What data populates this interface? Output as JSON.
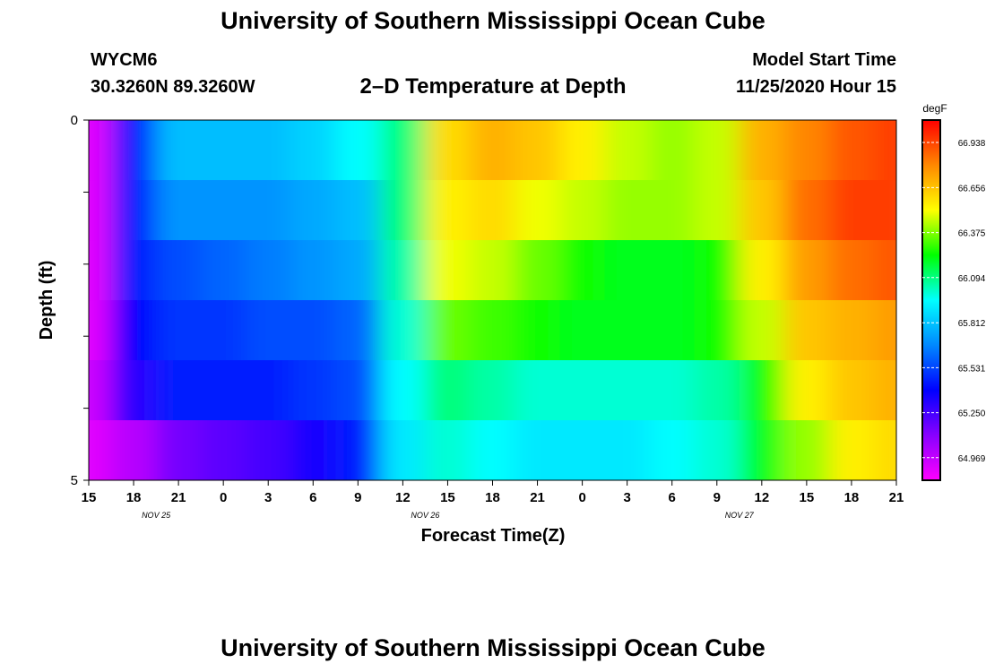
{
  "header": {
    "title": "University of Southern Mississippi Ocean Cube",
    "station_id": "WYCM6",
    "station_coords": "30.3260N 89.3260W",
    "plot_title": "2–D Temperature at Depth",
    "model_start_label": "Model Start Time",
    "model_start_value": "11/25/2020 Hour 15"
  },
  "footer": {
    "title": "University of Southern Mississippi Ocean Cube"
  },
  "chart_data": {
    "type": "heatmap",
    "title": "2–D Temperature at Depth",
    "xlabel": "Forecast Time(Z)",
    "ylabel": "Depth (ft)",
    "x_ticks": [
      "15",
      "18",
      "21",
      "0",
      "3",
      "6",
      "9",
      "12",
      "15",
      "18",
      "21",
      "0",
      "3",
      "6",
      "9",
      "12",
      "15",
      "18",
      "21"
    ],
    "date_labels": [
      {
        "label": "NOV 25",
        "tick_index": 1
      },
      {
        "label": "NOV 26",
        "tick_index": 7
      },
      {
        "label": "NOV 27",
        "tick_index": 14
      }
    ],
    "x_range_hours": [
      0,
      54
    ],
    "y_ticks": [
      "0",
      "5"
    ],
    "y_range": [
      0,
      5
    ],
    "colorbar": {
      "unit": "degF",
      "min": 64.828,
      "max": 67.078,
      "ticks": [
        "66.938",
        "66.656",
        "66.375",
        "66.094",
        "65.812",
        "65.531",
        "65.250",
        "64.969"
      ],
      "colors": [
        "#ff00ff",
        "#8800ff",
        "#0000ff",
        "#0088ff",
        "#00ffff",
        "#00ff00",
        "#ffff00",
        "#ff8800",
        "#ff0000"
      ]
    },
    "depth_rows": [
      0,
      1,
      2,
      3,
      4,
      5
    ],
    "time_hours_from_start": [
      0,
      3,
      6,
      9,
      12,
      15,
      18,
      21,
      24,
      27,
      30,
      33,
      36,
      39,
      42,
      45,
      48,
      51,
      54
    ],
    "series": [
      {
        "depth": 0,
        "values": [
          64.9,
          65.45,
          65.8,
          65.8,
          65.8,
          65.85,
          65.95,
          66.1,
          66.6,
          66.7,
          66.65,
          66.55,
          66.45,
          66.4,
          66.45,
          66.7,
          66.8,
          66.9,
          66.95
        ]
      },
      {
        "depth": 1,
        "values": [
          64.9,
          65.45,
          65.7,
          65.7,
          65.7,
          65.75,
          65.8,
          66.1,
          66.55,
          66.6,
          66.5,
          66.45,
          66.4,
          66.4,
          66.45,
          66.65,
          66.85,
          66.95,
          66.95
        ]
      },
      {
        "depth": 2,
        "values": [
          64.9,
          65.45,
          65.55,
          65.6,
          65.65,
          65.7,
          65.75,
          66.05,
          66.5,
          66.45,
          66.35,
          66.25,
          66.2,
          66.2,
          66.25,
          66.55,
          66.75,
          66.85,
          66.9
        ]
      },
      {
        "depth": 3,
        "values": [
          64.9,
          65.4,
          65.5,
          65.5,
          65.55,
          65.55,
          65.6,
          66.0,
          66.35,
          66.3,
          66.25,
          66.2,
          66.2,
          66.2,
          66.25,
          66.45,
          66.65,
          66.7,
          66.75
        ]
      },
      {
        "depth": 4,
        "values": [
          64.95,
          65.3,
          65.45,
          65.45,
          65.45,
          65.5,
          65.55,
          65.95,
          66.1,
          66.05,
          66.0,
          66.0,
          66.0,
          66.0,
          66.05,
          66.25,
          66.55,
          66.65,
          66.7
        ]
      },
      {
        "depth": 5,
        "values": [
          64.9,
          65.0,
          65.15,
          65.2,
          65.25,
          65.35,
          65.45,
          65.9,
          66.0,
          65.95,
          65.9,
          65.9,
          65.9,
          65.95,
          66.0,
          66.2,
          66.4,
          66.55,
          66.6
        ]
      }
    ]
  }
}
